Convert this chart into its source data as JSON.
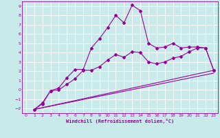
{
  "background_color": "#c8eaea",
  "grid_color": "#ffffff",
  "line_color": "#990099",
  "marker": "D",
  "marker_size": 2.0,
  "line_width": 0.8,
  "xlabel": "Windchill (Refroidissement éolien,°C)",
  "ylim": [
    -2.5,
    9.5
  ],
  "xlim": [
    -0.5,
    23.5
  ],
  "yticks": [
    -2,
    -1,
    0,
    1,
    2,
    3,
    4,
    5,
    6,
    7,
    8,
    9
  ],
  "xticks": [
    0,
    1,
    2,
    3,
    4,
    5,
    6,
    7,
    8,
    9,
    10,
    11,
    12,
    13,
    14,
    15,
    16,
    17,
    18,
    19,
    20,
    21,
    22,
    23
  ],
  "line1_x": [
    1,
    2,
    3,
    4,
    5,
    6,
    7,
    8,
    9,
    10,
    11,
    12,
    13,
    14,
    15,
    16,
    17,
    18,
    19,
    20,
    21,
    22,
    23
  ],
  "line1_y": [
    -2.1,
    -1.5,
    -0.1,
    0.2,
    1.3,
    2.2,
    2.2,
    4.5,
    5.5,
    6.7,
    8.0,
    7.2,
    9.1,
    8.5,
    5.0,
    4.5,
    4.6,
    5.0,
    4.5,
    4.6,
    4.6,
    4.5,
    2.1
  ],
  "line2_x": [
    1,
    2,
    3,
    4,
    5,
    6,
    7,
    8,
    9,
    10,
    11,
    12,
    13,
    14,
    15,
    16,
    17,
    18,
    19,
    20,
    21,
    22,
    23
  ],
  "line2_y": [
    -2.1,
    -1.4,
    -0.1,
    0.0,
    0.6,
    1.2,
    2.1,
    2.1,
    2.5,
    3.2,
    3.8,
    3.5,
    4.1,
    4.0,
    3.0,
    2.8,
    3.0,
    3.4,
    3.6,
    4.1,
    4.5,
    4.5,
    2.1
  ],
  "line3_x": [
    1,
    23
  ],
  "line3_y": [
    -2.1,
    2.1
  ],
  "line4_x": [
    1,
    23
  ],
  "line4_y": [
    -2.1,
    1.8
  ]
}
